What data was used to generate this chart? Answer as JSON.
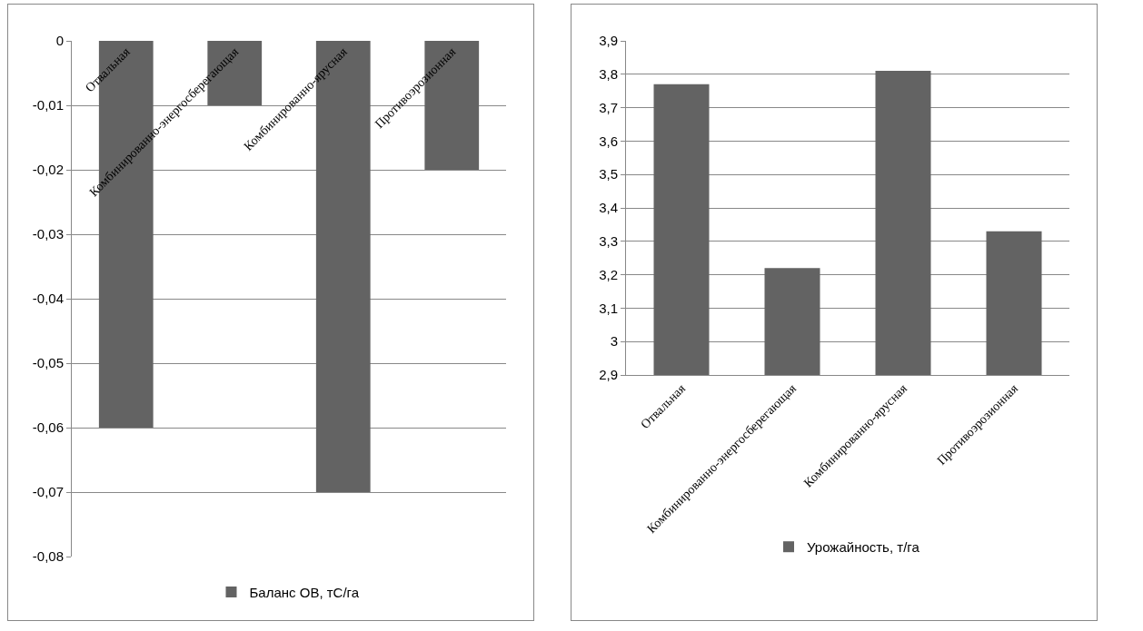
{
  "chart_data": [
    {
      "type": "bar",
      "categories": [
        "Отвальная",
        "Комбинированно-энергосберегающая",
        "Комбинированно-ярусная",
        "Противоэрозионная"
      ],
      "series": [
        {
          "name": "Баланс ОВ, тС/га",
          "color": "#636363",
          "values": [
            -0.06,
            -0.01,
            -0.07,
            -0.02
          ]
        }
      ],
      "ylim": [
        -0.08,
        0
      ],
      "yticks": [
        {
          "value": -0.08,
          "label": "-0,08"
        },
        {
          "value": -0.07,
          "label": "-0,07"
        },
        {
          "value": -0.06,
          "label": "-0,06"
        },
        {
          "value": -0.05,
          "label": "-0,05"
        },
        {
          "value": -0.04,
          "label": "-0,04"
        },
        {
          "value": -0.03,
          "label": "-0,03"
        },
        {
          "value": -0.02,
          "label": "-0,02"
        },
        {
          "value": -0.01,
          "label": "-0,01"
        },
        0
      ],
      "grid": "y",
      "legend": "bottom"
    },
    {
      "type": "bar",
      "categories": [
        "Отвальная",
        "Комбинированно-энергосберегающая",
        "Комбинированно-ярусная",
        "Противоэрозионная"
      ],
      "series": [
        {
          "name": "Урожайность, т/га",
          "color": "#636363",
          "values": [
            3.77,
            3.22,
            3.81,
            3.33
          ]
        }
      ],
      "ylim": [
        2.9,
        3.9
      ],
      "yticks": [
        {
          "value": 2.9,
          "label": "2,9"
        },
        3,
        {
          "value": 3.1,
          "label": "3,1"
        },
        {
          "value": 3.2,
          "label": "3,2"
        },
        {
          "value": 3.3,
          "label": "3,3"
        },
        {
          "value": 3.4,
          "label": "3,4"
        },
        {
          "value": 3.5,
          "label": "3,5"
        },
        {
          "value": 3.6,
          "label": "3,6"
        },
        {
          "value": 3.7,
          "label": "3,7"
        },
        {
          "value": 3.8,
          "label": "3,8"
        },
        {
          "value": 3.9,
          "label": "3,9"
        }
      ],
      "grid": "y",
      "legend": "bottom"
    }
  ]
}
